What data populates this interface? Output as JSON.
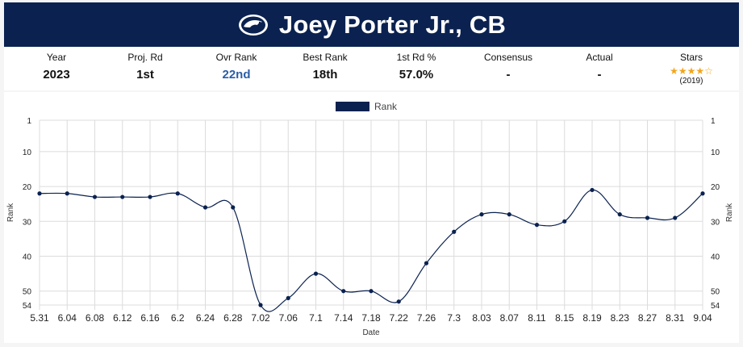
{
  "header": {
    "title": "Joey Porter Jr., CB",
    "logo_icon": "nittany-lion-logo-icon",
    "bg_color": "#0b2250"
  },
  "stats": [
    {
      "label": "Year",
      "value": "2023",
      "highlight": false
    },
    {
      "label": "Proj. Rd",
      "value": "1st",
      "highlight": false
    },
    {
      "label": "Ovr Rank",
      "value": "22nd",
      "highlight": true
    },
    {
      "label": "Best Rank",
      "value": "18th",
      "highlight": false
    },
    {
      "label": "1st Rd %",
      "value": "57.0%",
      "highlight": false
    },
    {
      "label": "Consensus",
      "value": "-",
      "highlight": false
    },
    {
      "label": "Actual",
      "value": "-",
      "highlight": false
    }
  ],
  "stars": {
    "label": "Stars",
    "filled": 4,
    "total": 5,
    "year": "(2019)",
    "color": "#f2a51c"
  },
  "chart_data": {
    "type": "line",
    "legend": "Rank",
    "legend_position": "top-center",
    "xlabel": "Date",
    "ylabel": "Rank",
    "ylabel_right": "Rank",
    "y_reversed": true,
    "ylim": [
      1,
      54
    ],
    "yticks": [
      1,
      10,
      20,
      30,
      40,
      50,
      54
    ],
    "grid": true,
    "line_color": "#0b2250",
    "categories": [
      "5.31",
      "6.04",
      "6.08",
      "6.12",
      "6.16",
      "6.2",
      "6.24",
      "6.28",
      "7.02",
      "7.06",
      "7.1",
      "7.14",
      "7.18",
      "7.22",
      "7.26",
      "7.3",
      "8.03",
      "8.07",
      "8.11",
      "8.15",
      "8.19",
      "8.23",
      "8.27",
      "8.31",
      "9.04"
    ],
    "series": [
      {
        "name": "Rank",
        "values": [
          22,
          22,
          23,
          23,
          23,
          22,
          26,
          26,
          54,
          52,
          45,
          50,
          50,
          53,
          42,
          33,
          28,
          28,
          31,
          30,
          21,
          28,
          29,
          29,
          22
        ]
      }
    ]
  }
}
